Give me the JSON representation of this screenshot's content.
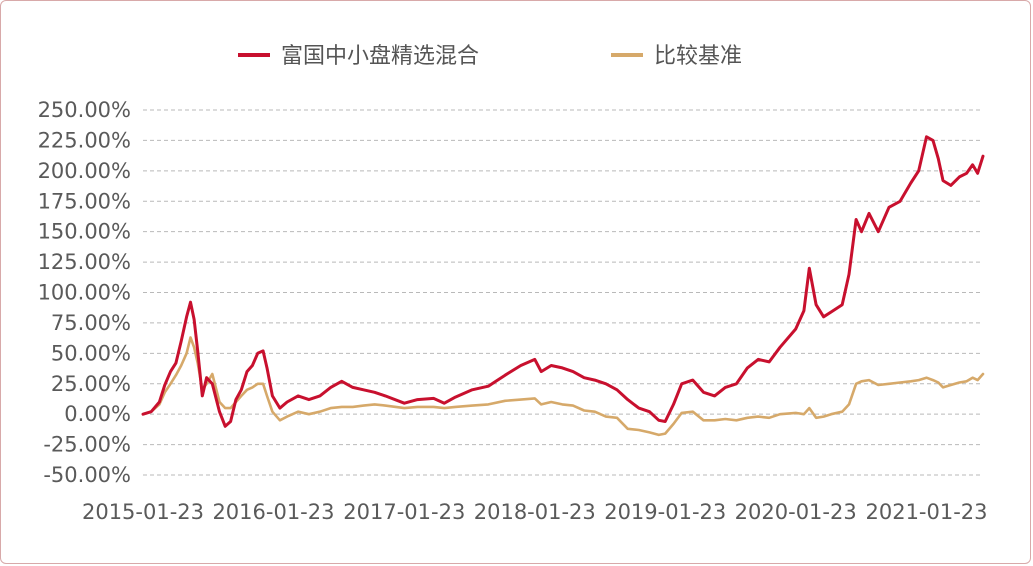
{
  "chart_data": {
    "type": "line",
    "title": "",
    "xlabel": "",
    "ylabel": "",
    "legend_position": "top-center",
    "grid": {
      "horizontal": true,
      "style": "dashed"
    },
    "y_ticks": [
      "250.00%",
      "225.00%",
      "200.00%",
      "175.00%",
      "150.00%",
      "125.00%",
      "100.00%",
      "75.00%",
      "50.00%",
      "25.00%",
      "0.00%",
      "-25.00%",
      "-50.00%"
    ],
    "y_tick_values": [
      250,
      225,
      200,
      175,
      150,
      125,
      100,
      75,
      50,
      25,
      0,
      -25,
      -50
    ],
    "x_ticks": [
      "2015-01-23",
      "2016-01-23",
      "2017-01-23",
      "2018-01-23",
      "2019-01-23",
      "2020-01-23",
      "2021-01-23"
    ],
    "x_range": [
      "2015-01-23",
      "2021-06-30"
    ],
    "ylim": [
      -50,
      250
    ],
    "series": [
      {
        "name": "富国中小盘精选混合",
        "color": "#c8102e",
        "points": [
          [
            "2015-01-23",
            0
          ],
          [
            "2015-02-15",
            2
          ],
          [
            "2015-03-10",
            10
          ],
          [
            "2015-03-25",
            24
          ],
          [
            "2015-04-10",
            35
          ],
          [
            "2015-04-25",
            42
          ],
          [
            "2015-05-10",
            60
          ],
          [
            "2015-05-25",
            80
          ],
          [
            "2015-06-05",
            92
          ],
          [
            "2015-06-15",
            78
          ],
          [
            "2015-06-25",
            52
          ],
          [
            "2015-07-08",
            15
          ],
          [
            "2015-07-20",
            30
          ],
          [
            "2015-08-05",
            25
          ],
          [
            "2015-08-25",
            2
          ],
          [
            "2015-09-10",
            -10
          ],
          [
            "2015-09-25",
            -6
          ],
          [
            "2015-10-10",
            12
          ],
          [
            "2015-10-25",
            20
          ],
          [
            "2015-11-10",
            35
          ],
          [
            "2015-11-25",
            40
          ],
          [
            "2015-12-10",
            50
          ],
          [
            "2015-12-25",
            52
          ],
          [
            "2016-01-05",
            38
          ],
          [
            "2016-01-20",
            15
          ],
          [
            "2016-02-10",
            5
          ],
          [
            "2016-03-01",
            10
          ],
          [
            "2016-04-01",
            15
          ],
          [
            "2016-05-01",
            12
          ],
          [
            "2016-06-01",
            15
          ],
          [
            "2016-07-01",
            22
          ],
          [
            "2016-08-01",
            27
          ],
          [
            "2016-09-01",
            22
          ],
          [
            "2016-10-01",
            20
          ],
          [
            "2016-11-01",
            18
          ],
          [
            "2016-12-01",
            15
          ],
          [
            "2017-01-23",
            9
          ],
          [
            "2017-03-01",
            12
          ],
          [
            "2017-04-15",
            13
          ],
          [
            "2017-05-15",
            9
          ],
          [
            "2017-06-15",
            14
          ],
          [
            "2017-08-01",
            20
          ],
          [
            "2017-09-15",
            23
          ],
          [
            "2017-11-01",
            32
          ],
          [
            "2017-12-15",
            40
          ],
          [
            "2018-01-23",
            45
          ],
          [
            "2018-02-10",
            35
          ],
          [
            "2018-03-10",
            40
          ],
          [
            "2018-04-10",
            38
          ],
          [
            "2018-05-10",
            35
          ],
          [
            "2018-06-10",
            30
          ],
          [
            "2018-07-10",
            28
          ],
          [
            "2018-08-10",
            25
          ],
          [
            "2018-09-10",
            20
          ],
          [
            "2018-10-10",
            12
          ],
          [
            "2018-11-10",
            5
          ],
          [
            "2018-12-10",
            2
          ],
          [
            "2019-01-05",
            -5
          ],
          [
            "2019-01-23",
            -6
          ],
          [
            "2019-02-15",
            8
          ],
          [
            "2019-03-10",
            25
          ],
          [
            "2019-04-10",
            28
          ],
          [
            "2019-05-10",
            18
          ],
          [
            "2019-06-10",
            15
          ],
          [
            "2019-07-10",
            22
          ],
          [
            "2019-08-10",
            25
          ],
          [
            "2019-09-10",
            38
          ],
          [
            "2019-10-10",
            45
          ],
          [
            "2019-11-10",
            43
          ],
          [
            "2019-12-10",
            55
          ],
          [
            "2020-01-23",
            70
          ],
          [
            "2020-02-15",
            85
          ],
          [
            "2020-03-01",
            120
          ],
          [
            "2020-03-20",
            90
          ],
          [
            "2020-04-10",
            80
          ],
          [
            "2020-05-01",
            84
          ],
          [
            "2020-06-01",
            90
          ],
          [
            "2020-06-20",
            115
          ],
          [
            "2020-07-10",
            160
          ],
          [
            "2020-07-25",
            150
          ],
          [
            "2020-08-15",
            165
          ],
          [
            "2020-09-10",
            150
          ],
          [
            "2020-10-10",
            170
          ],
          [
            "2020-11-10",
            175
          ],
          [
            "2020-12-10",
            190
          ],
          [
            "2021-01-01",
            200
          ],
          [
            "2021-01-23",
            228
          ],
          [
            "2021-02-10",
            225
          ],
          [
            "2021-02-25",
            210
          ],
          [
            "2021-03-10",
            192
          ],
          [
            "2021-04-01",
            188
          ],
          [
            "2021-04-25",
            195
          ],
          [
            "2021-05-15",
            198
          ],
          [
            "2021-06-01",
            205
          ],
          [
            "2021-06-15",
            198
          ],
          [
            "2021-06-30",
            212
          ]
        ]
      },
      {
        "name": "比较基准",
        "color": "#d6a96a",
        "points": [
          [
            "2015-01-23",
            0
          ],
          [
            "2015-02-15",
            2
          ],
          [
            "2015-03-10",
            8
          ],
          [
            "2015-03-25",
            18
          ],
          [
            "2015-04-10",
            25
          ],
          [
            "2015-04-25",
            32
          ],
          [
            "2015-05-10",
            40
          ],
          [
            "2015-05-25",
            50
          ],
          [
            "2015-06-05",
            63
          ],
          [
            "2015-06-15",
            55
          ],
          [
            "2015-06-25",
            42
          ],
          [
            "2015-07-08",
            20
          ],
          [
            "2015-07-20",
            25
          ],
          [
            "2015-08-05",
            33
          ],
          [
            "2015-08-25",
            10
          ],
          [
            "2015-09-10",
            5
          ],
          [
            "2015-09-25",
            5
          ],
          [
            "2015-10-10",
            10
          ],
          [
            "2015-10-25",
            15
          ],
          [
            "2015-11-10",
            20
          ],
          [
            "2015-11-25",
            22
          ],
          [
            "2015-12-10",
            25
          ],
          [
            "2015-12-25",
            25
          ],
          [
            "2016-01-05",
            15
          ],
          [
            "2016-01-20",
            2
          ],
          [
            "2016-02-10",
            -5
          ],
          [
            "2016-03-01",
            -2
          ],
          [
            "2016-04-01",
            2
          ],
          [
            "2016-05-01",
            0
          ],
          [
            "2016-06-01",
            2
          ],
          [
            "2016-07-01",
            5
          ],
          [
            "2016-08-01",
            6
          ],
          [
            "2016-09-01",
            6
          ],
          [
            "2016-10-01",
            7
          ],
          [
            "2016-11-01",
            8
          ],
          [
            "2016-12-01",
            7
          ],
          [
            "2017-01-23",
            5
          ],
          [
            "2017-03-01",
            6
          ],
          [
            "2017-04-15",
            6
          ],
          [
            "2017-05-15",
            5
          ],
          [
            "2017-06-15",
            6
          ],
          [
            "2017-08-01",
            7
          ],
          [
            "2017-09-15",
            8
          ],
          [
            "2017-11-01",
            11
          ],
          [
            "2017-12-15",
            12
          ],
          [
            "2018-01-23",
            13
          ],
          [
            "2018-02-10",
            8
          ],
          [
            "2018-03-10",
            10
          ],
          [
            "2018-04-10",
            8
          ],
          [
            "2018-05-10",
            7
          ],
          [
            "2018-06-10",
            3
          ],
          [
            "2018-07-10",
            2
          ],
          [
            "2018-08-10",
            -2
          ],
          [
            "2018-09-10",
            -3
          ],
          [
            "2018-10-10",
            -12
          ],
          [
            "2018-11-10",
            -13
          ],
          [
            "2018-12-10",
            -15
          ],
          [
            "2019-01-05",
            -17
          ],
          [
            "2019-01-23",
            -16
          ],
          [
            "2019-02-15",
            -8
          ],
          [
            "2019-03-10",
            1
          ],
          [
            "2019-04-10",
            2
          ],
          [
            "2019-05-10",
            -5
          ],
          [
            "2019-06-10",
            -5
          ],
          [
            "2019-07-10",
            -4
          ],
          [
            "2019-08-10",
            -5
          ],
          [
            "2019-09-10",
            -3
          ],
          [
            "2019-10-10",
            -2
          ],
          [
            "2019-11-10",
            -3
          ],
          [
            "2019-12-10",
            0
          ],
          [
            "2020-01-23",
            1
          ],
          [
            "2020-02-15",
            0
          ],
          [
            "2020-03-01",
            5
          ],
          [
            "2020-03-20",
            -3
          ],
          [
            "2020-04-10",
            -2
          ],
          [
            "2020-05-01",
            0
          ],
          [
            "2020-06-01",
            2
          ],
          [
            "2020-06-20",
            8
          ],
          [
            "2020-07-10",
            25
          ],
          [
            "2020-07-25",
            27
          ],
          [
            "2020-08-15",
            28
          ],
          [
            "2020-09-10",
            24
          ],
          [
            "2020-10-10",
            25
          ],
          [
            "2020-11-10",
            26
          ],
          [
            "2020-12-10",
            27
          ],
          [
            "2021-01-01",
            28
          ],
          [
            "2021-01-23",
            30
          ],
          [
            "2021-02-10",
            28
          ],
          [
            "2021-02-25",
            26
          ],
          [
            "2021-03-10",
            22
          ],
          [
            "2021-04-01",
            24
          ],
          [
            "2021-04-25",
            26
          ],
          [
            "2021-05-15",
            27
          ],
          [
            "2021-06-01",
            30
          ],
          [
            "2021-06-15",
            28
          ],
          [
            "2021-06-30",
            33
          ]
        ]
      }
    ]
  }
}
